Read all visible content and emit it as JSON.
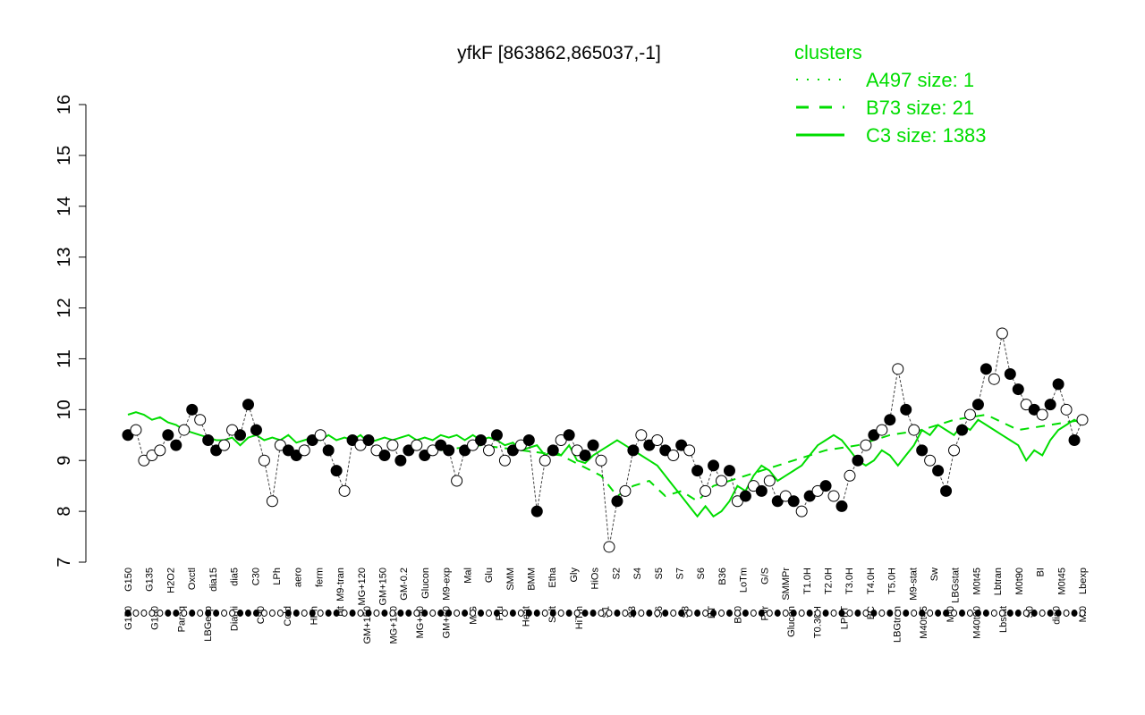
{
  "chart_data": {
    "type": "line",
    "title": "yfkF [863862,865037,-1]",
    "xlabel": "",
    "ylabel": "",
    "ylim": [
      7,
      16
    ],
    "yticks": [
      7,
      8,
      9,
      10,
      11,
      12,
      13,
      14,
      15,
      16
    ],
    "grid": false,
    "legend": {
      "title": "clusters",
      "placement": "top-right",
      "entries": [
        {
          "label": "A497 size: 1",
          "style": "dotted"
        },
        {
          "label": "B73 size: 21",
          "style": "dashed"
        },
        {
          "label": "C3 size: 1383",
          "style": "solid"
        }
      ]
    },
    "x_tick_labels_top": [
      "G150",
      "G135",
      "H2O2",
      "Oxctl",
      "dia15",
      "dia5",
      "C30",
      "LPh",
      "aero",
      "ferm",
      "M9-tran",
      "MG+120",
      "GM+150",
      "GM-0.2",
      "Glucon",
      "M9-exp",
      "Mal",
      "Glu",
      "SMM",
      "BMM",
      "Etha",
      "Gly",
      "HiOs",
      "S2",
      "S4",
      "S5",
      "S7",
      "S6",
      "B36",
      "LoTm",
      "G/S",
      "SMMPr",
      "T1.0H",
      "T2.0H",
      "T3.0H",
      "T4.0H",
      "T5.0H",
      "M9-stat",
      "Sw",
      "LBGstat",
      "M0t45",
      "Lbtran",
      "M0t90",
      "BI",
      "M0t45",
      "Lbexp"
    ],
    "x_tick_labels_bottom": [
      "G150",
      "G180",
      "Paraq",
      "LBGexp",
      "Diami",
      "C90",
      "Cold",
      "HPh",
      "nit",
      "GM+150",
      "MG+150",
      "MG+90",
      "GM+60",
      "M/G",
      "Fru",
      "Heat",
      "Salt",
      "HiTm",
      "S1",
      "S3",
      "S6",
      "S8",
      "BT",
      "B60",
      "Pyr",
      "Glucon",
      "T0.30H",
      "LPhT",
      "BC",
      "LBGtran",
      "M40t45",
      "Mt0",
      "M40t90",
      "Lbstat",
      "S0",
      "dia0",
      "Mt0"
    ],
    "series": [
      {
        "cluster": "C3",
        "style": "solid",
        "color": "#00dd00",
        "x": [
          1,
          2,
          3,
          4,
          5,
          6,
          7,
          8,
          9,
          10,
          11,
          12,
          13,
          14,
          15,
          16,
          17,
          18,
          19,
          20,
          21,
          22,
          23,
          24,
          25,
          26,
          27,
          28,
          29,
          30,
          31,
          32,
          33,
          34,
          35,
          36,
          37,
          38,
          39,
          40,
          41,
          42,
          43,
          44,
          45,
          46,
          47,
          48,
          49,
          50,
          51,
          52,
          53,
          54,
          55,
          56,
          57,
          58,
          59,
          60,
          61,
          62,
          63,
          64,
          65,
          66,
          67,
          68,
          69,
          70,
          71,
          72,
          73,
          74,
          75,
          76,
          77,
          78,
          79,
          80,
          81,
          82,
          83,
          84,
          85,
          86,
          87,
          88,
          89,
          90,
          91,
          92,
          93,
          94,
          95,
          96,
          97,
          98,
          99,
          100,
          101,
          102,
          103,
          104,
          105,
          106,
          107,
          108,
          109,
          110,
          111,
          112,
          113,
          114,
          115,
          116,
          117,
          118,
          119,
          120
        ],
        "y": [
          9.9,
          9.95,
          9.9,
          9.8,
          9.85,
          9.75,
          9.7,
          9.6,
          9.55,
          9.5,
          9.45,
          9.4,
          9.4,
          9.45,
          9.3,
          9.45,
          9.5,
          9.4,
          9.45,
          9.4,
          9.5,
          9.35,
          9.4,
          9.45,
          9.4,
          9.5,
          9.4,
          9.45,
          9.4,
          9.5,
          9.35,
          9.4,
          9.45,
          9.4,
          9.45,
          9.5,
          9.4,
          9.45,
          9.4,
          9.5,
          9.45,
          9.5,
          9.4,
          9.5,
          9.4,
          9.45,
          9.4,
          9.3,
          9.35,
          9.2,
          9.25,
          9.3,
          9.1,
          9.2,
          9.1,
          9.3,
          9.0,
          8.95,
          9.1,
          9.2,
          9.3,
          9.4,
          9.3,
          9.2,
          9.1,
          9.0,
          8.9,
          8.7,
          8.5,
          8.3,
          8.1,
          7.9,
          8.1,
          7.9,
          8.0,
          8.2,
          8.5,
          8.4,
          8.7,
          8.9,
          8.8,
          8.6,
          8.7,
          8.8,
          8.9,
          9.1,
          9.3,
          9.4,
          9.5,
          9.4,
          9.2,
          9.0,
          8.9,
          9.0,
          9.2,
          9.1,
          8.9,
          9.1,
          9.3,
          9.6,
          9.5,
          9.7,
          9.6,
          9.5,
          9.7,
          9.6,
          9.8,
          9.7,
          9.6,
          9.5,
          9.4,
          9.3,
          9.0,
          9.2,
          9.1,
          9.4,
          9.6,
          9.7,
          9.8,
          9.7
        ]
      },
      {
        "cluster": "B73",
        "style": "dashed",
        "color": "#00dd00",
        "x": [
          40,
          45,
          50,
          55,
          60,
          62,
          64,
          66,
          68,
          70,
          72,
          74,
          76,
          78,
          80,
          84,
          88,
          92,
          96,
          100,
          104,
          108,
          112,
          116,
          120
        ],
        "y": [
          9.2,
          9.3,
          9.2,
          9.1,
          8.7,
          8.3,
          8.5,
          8.6,
          8.3,
          8.4,
          8.2,
          8.5,
          8.6,
          8.7,
          8.8,
          9.0,
          9.2,
          9.3,
          9.5,
          9.6,
          9.8,
          9.9,
          9.6,
          9.7,
          9.8
        ]
      }
    ],
    "points": {
      "x": [
        1,
        2,
        3,
        4,
        5,
        6,
        7,
        8,
        9,
        10,
        11,
        12,
        13,
        14,
        15,
        16,
        17,
        18,
        19,
        20,
        21,
        22,
        23,
        24,
        25,
        26,
        27,
        28,
        29,
        30,
        31,
        32,
        33,
        34,
        35,
        36,
        37,
        38,
        39,
        40,
        41,
        42,
        43,
        44,
        45,
        46,
        47,
        48,
        49,
        50,
        51,
        52,
        53,
        54,
        55,
        56,
        57,
        58,
        59,
        60,
        61,
        62,
        63,
        64,
        65,
        66,
        67,
        68,
        69,
        70,
        71,
        72,
        73,
        74,
        75,
        76,
        77,
        78,
        79,
        80,
        81,
        82,
        83,
        84,
        85,
        86,
        87,
        88,
        89,
        90,
        91,
        92,
        93,
        94,
        95,
        96,
        97,
        98,
        99,
        100,
        101,
        102,
        103,
        104,
        105,
        106,
        107,
        108,
        109,
        110,
        111,
        112,
        113,
        114,
        115,
        116,
        117,
        118,
        119,
        120
      ],
      "y": [
        9.5,
        9.6,
        9.0,
        9.1,
        9.2,
        9.5,
        9.3,
        9.6,
        10.0,
        9.8,
        9.4,
        9.2,
        9.3,
        9.6,
        9.5,
        10.1,
        9.6,
        9.0,
        8.2,
        9.3,
        9.2,
        9.1,
        9.2,
        9.4,
        9.5,
        9.2,
        8.8,
        8.4,
        9.4,
        9.3,
        9.4,
        9.2,
        9.1,
        9.3,
        9.0,
        9.2,
        9.3,
        9.1,
        9.2,
        9.3,
        9.2,
        8.6,
        9.2,
        9.3,
        9.4,
        9.2,
        9.5,
        9.0,
        9.2,
        9.3,
        9.4,
        8.0,
        9.0,
        9.2,
        9.4,
        9.5,
        9.2,
        9.1,
        9.3,
        9.0,
        7.3,
        8.2,
        8.4,
        9.2,
        9.5,
        9.3,
        9.4,
        9.2,
        9.1,
        9.3,
        9.2,
        8.8,
        8.4,
        8.9,
        8.6,
        8.8,
        8.2,
        8.3,
        8.5,
        8.4,
        8.6,
        8.2,
        8.3,
        8.2,
        8.0,
        8.3,
        8.4,
        8.5,
        8.3,
        8.1,
        8.7,
        9.0,
        9.3,
        9.5,
        9.6,
        9.8,
        10.8,
        10.0,
        9.6,
        9.2,
        9.0,
        8.8,
        8.4,
        9.2,
        9.6,
        9.9,
        10.1,
        10.8,
        10.6,
        11.5,
        10.7,
        10.4,
        10.1,
        10.0,
        9.9,
        10.1,
        10.5,
        10.0,
        9.4,
        9.8
      ],
      "filled": [
        1,
        0,
        0,
        0,
        0,
        1,
        1,
        0,
        1,
        0,
        1,
        1,
        0,
        0,
        1,
        1,
        1,
        0,
        0,
        0,
        1,
        1,
        0,
        1,
        0,
        1,
        1,
        0,
        1,
        0,
        1,
        0,
        1,
        0,
        1,
        1,
        0,
        1,
        0,
        1,
        1,
        0,
        1,
        0,
        1,
        0,
        1,
        0,
        1,
        0,
        1,
        1,
        0,
        1,
        0,
        1,
        0,
        1,
        1,
        0,
        0,
        1,
        0,
        1,
        0,
        1,
        0,
        1,
        0,
        1,
        0,
        1,
        0,
        1,
        0,
        1,
        0,
        1,
        0,
        1,
        0,
        1,
        0,
        1,
        0,
        1,
        0,
        1,
        0,
        1,
        0,
        1,
        0,
        1,
        0,
        1,
        0,
        1,
        0,
        1,
        0,
        1,
        1,
        0,
        1,
        0,
        1,
        1,
        0,
        0,
        1,
        1,
        0,
        1,
        0,
        1,
        1,
        0,
        1,
        0
      ]
    }
  }
}
